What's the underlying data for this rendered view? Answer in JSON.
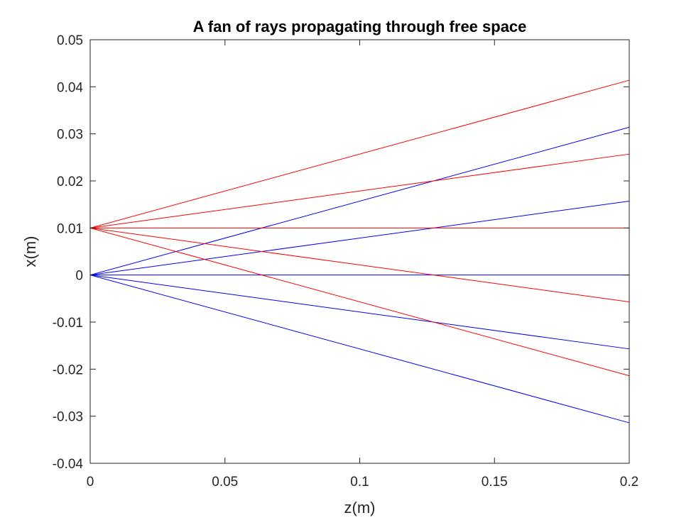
{
  "chart_data": {
    "type": "line",
    "title": "A fan of rays propagating through free space",
    "xlabel": "z(m)",
    "ylabel": "x(m)",
    "xlim": [
      0,
      0.2
    ],
    "ylim": [
      -0.04,
      0.05
    ],
    "xticks": [
      0,
      0.05,
      0.1,
      0.15,
      0.2
    ],
    "xtick_labels": [
      "0",
      "0.05",
      "0.1",
      "0.15",
      "0.2"
    ],
    "yticks": [
      -0.04,
      -0.03,
      -0.02,
      -0.01,
      0,
      0.01,
      0.02,
      0.03,
      0.04,
      0.05
    ],
    "ytick_labels": [
      "-0.04",
      "-0.03",
      "-0.02",
      "-0.01",
      "0",
      "0.01",
      "0.02",
      "0.03",
      "0.04",
      "0.05"
    ],
    "grid": false,
    "series_colors": {
      "blue": "#0000ff",
      "red": "#ff0000"
    },
    "series": [
      {
        "color": "#0000ff",
        "x": [
          0,
          0.2
        ],
        "y": [
          0,
          0.0314
        ]
      },
      {
        "color": "#0000ff",
        "x": [
          0,
          0.2
        ],
        "y": [
          0,
          0.0157
        ]
      },
      {
        "color": "#0000ff",
        "x": [
          0,
          0.2
        ],
        "y": [
          0,
          0
        ]
      },
      {
        "color": "#0000ff",
        "x": [
          0,
          0.2
        ],
        "y": [
          0,
          -0.0157
        ]
      },
      {
        "color": "#0000ff",
        "x": [
          0,
          0.2
        ],
        "y": [
          0,
          -0.0314
        ]
      },
      {
        "color": "#ff0000",
        "x": [
          0,
          0.2
        ],
        "y": [
          0.01,
          0.0414
        ]
      },
      {
        "color": "#ff0000",
        "x": [
          0,
          0.2
        ],
        "y": [
          0.01,
          0.0257
        ]
      },
      {
        "color": "#ff0000",
        "x": [
          0,
          0.2
        ],
        "y": [
          0.01,
          0.01
        ]
      },
      {
        "color": "#ff0000",
        "x": [
          0,
          0.2
        ],
        "y": [
          0.01,
          -0.0057
        ]
      },
      {
        "color": "#ff0000",
        "x": [
          0,
          0.2
        ],
        "y": [
          0.01,
          -0.0214
        ]
      }
    ]
  }
}
